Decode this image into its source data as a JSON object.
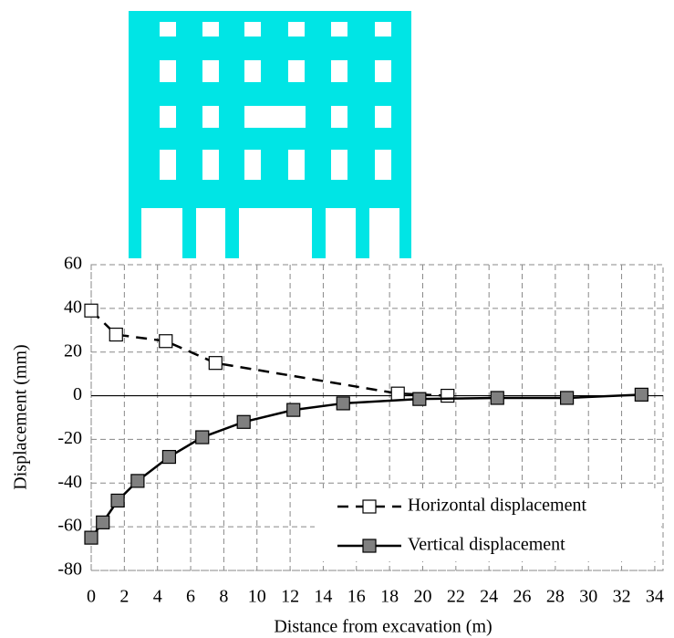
{
  "chart_data": {
    "type": "line",
    "x_label": "Distance from excavation (m)",
    "y_label": "Displacement (mm)",
    "xlim": [
      0,
      34.5
    ],
    "ylim": [
      -80,
      60
    ],
    "xticks": [
      0,
      2,
      4,
      6,
      8,
      10,
      12,
      14,
      16,
      18,
      20,
      22,
      24,
      26,
      28,
      30,
      32,
      34
    ],
    "yticks": [
      -80,
      -60,
      -40,
      -20,
      0,
      20,
      40,
      60
    ],
    "grid": true,
    "legend": "lower right",
    "series": [
      {
        "name": "Horizontal displacement",
        "color": "#000000",
        "marker_fill": "#ffffff",
        "dashed": true,
        "x": [
          0,
          1.5,
          4.5,
          7.5,
          18.5,
          21.5
        ],
        "values": [
          39,
          28,
          25,
          15,
          1,
          0
        ]
      },
      {
        "name": "Vertical displacement",
        "color": "#000000",
        "marker_fill": "#808080",
        "dashed": false,
        "x": [
          0,
          0.7,
          1.6,
          2.8,
          4.7,
          6.7,
          9.2,
          12.2,
          15.2,
          19.8,
          24.5,
          28.7,
          33.2
        ],
        "values": [
          -65,
          -58,
          -48,
          -39,
          -28,
          -19,
          -12,
          -6.5,
          -3.5,
          -1.5,
          -1,
          -1,
          0.5
        ]
      }
    ]
  }
}
